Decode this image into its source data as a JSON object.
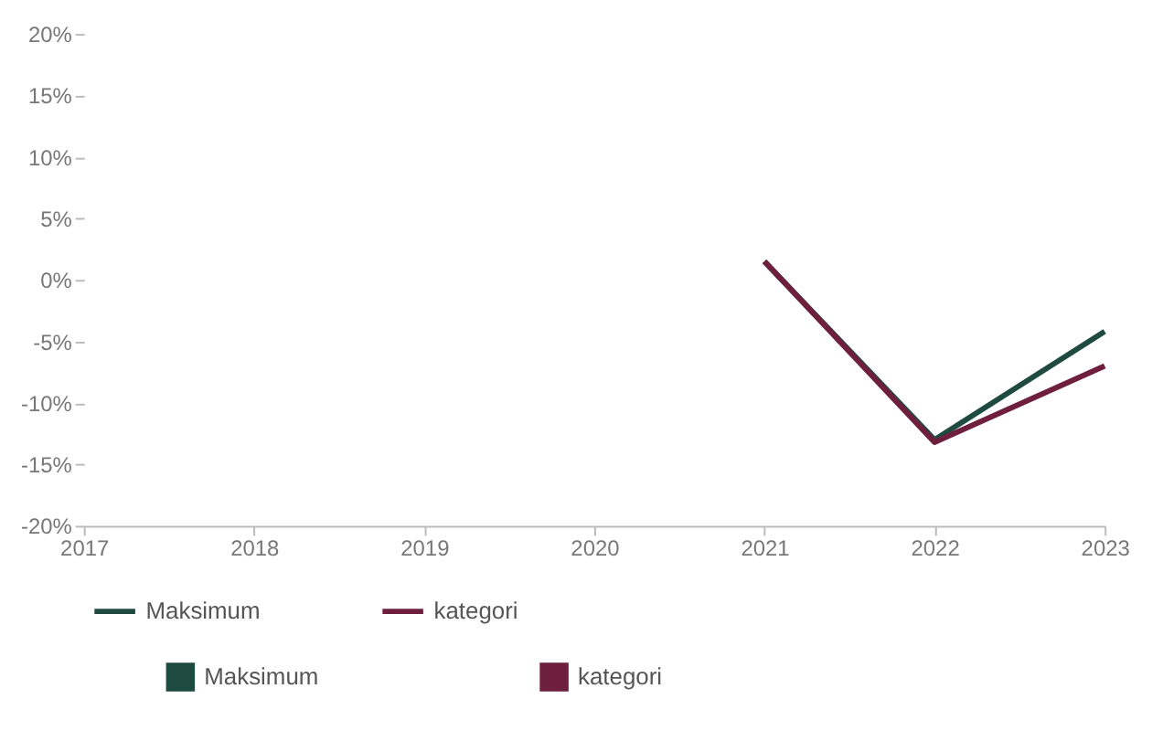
{
  "chart_data": {
    "type": "line",
    "categories": [
      "2017",
      "2018",
      "2019",
      "2020",
      "2021",
      "2022",
      "2023"
    ],
    "series": [
      {
        "name": "Maksimum",
        "color": "#1f4a3f",
        "values": [
          null,
          null,
          null,
          null,
          1.5,
          -13,
          -4.2
        ]
      },
      {
        "name": "kategori",
        "color": "#6e1f3c",
        "values": [
          null,
          null,
          null,
          null,
          1.5,
          -13.2,
          -7
        ]
      }
    ],
    "ylim": [
      -20,
      20
    ],
    "yticks": [
      {
        "value": -20,
        "label": "-20%"
      },
      {
        "value": -15,
        "label": "-15%"
      },
      {
        "value": -10,
        "label": "-10%"
      },
      {
        "value": -5,
        "label": "-5%"
      },
      {
        "value": 0,
        "label": "0%"
      },
      {
        "value": 5,
        "label": "5%"
      },
      {
        "value": 10,
        "label": "10%"
      },
      {
        "value": 15,
        "label": "15%"
      },
      {
        "value": 20,
        "label": "20%"
      }
    ],
    "grid": false,
    "legend": "bottom",
    "marker": "none",
    "line_style": "solid"
  }
}
